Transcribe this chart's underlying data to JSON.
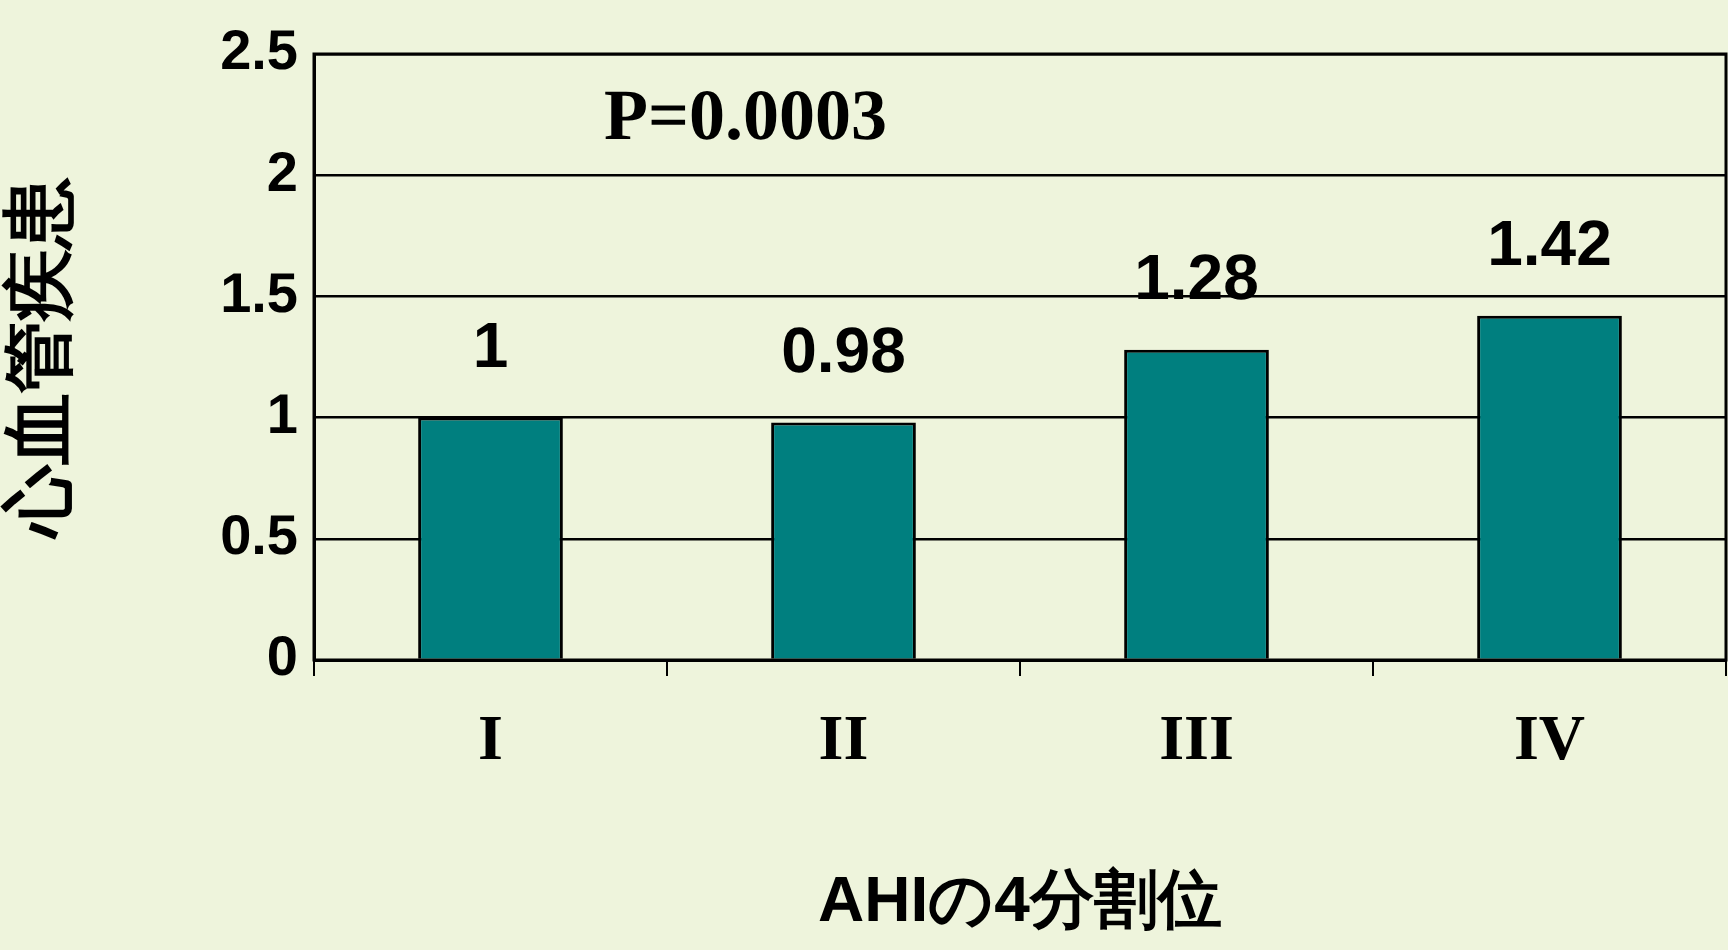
{
  "chart_data": {
    "type": "bar",
    "xlabel": "AHIの4分割位",
    "ylabel": "心血管疾患",
    "categories": [
      "I",
      "II",
      "III",
      "IV"
    ],
    "values": [
      1,
      0.98,
      1.28,
      1.42
    ],
    "color": "#007f7f",
    "ylim": [
      0,
      2.5
    ],
    "yticks": [
      0,
      0.5,
      1,
      1.5,
      2,
      2.5
    ],
    "grid": "y",
    "data_labels": true,
    "annotations": [
      "P=0.0003"
    ]
  }
}
